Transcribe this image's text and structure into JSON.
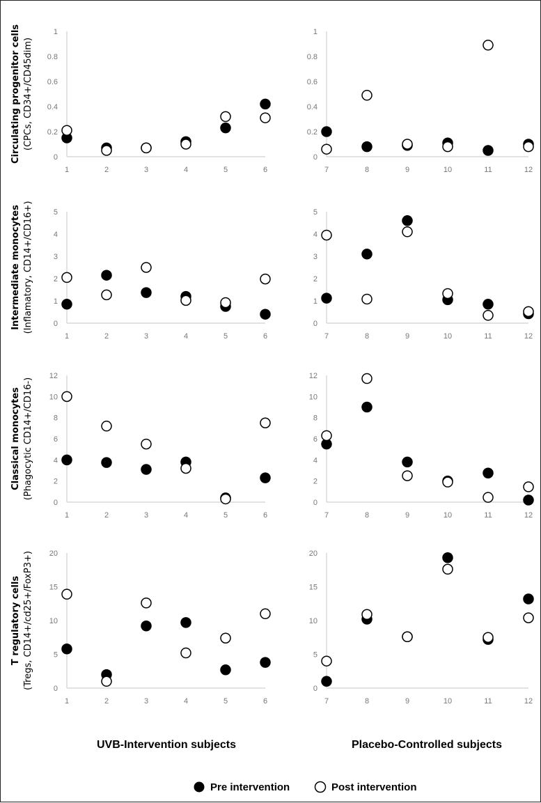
{
  "chart_data": [
    {
      "type": "scatter",
      "row_label": [
        "Circulating progenitor cells",
        "(CPCs,  CD34+/CD45dim)"
      ],
      "x": [
        1,
        2,
        3,
        4,
        5,
        6
      ],
      "ylim": [
        0,
        1
      ],
      "yticks": [
        0,
        0.2,
        0.4,
        0.6,
        0.8,
        1
      ],
      "series": [
        {
          "name": "Pre intervention",
          "values": [
            0.15,
            0.07,
            0.07,
            0.12,
            0.23,
            0.42
          ]
        },
        {
          "name": "Post intervention",
          "values": [
            0.21,
            0.05,
            0.07,
            0.1,
            0.32,
            0.31
          ]
        }
      ]
    },
    {
      "type": "scatter",
      "x": [
        7,
        8,
        9,
        10,
        11,
        12
      ],
      "ylim": [
        0,
        1
      ],
      "yticks": [
        0,
        0.2,
        0.4,
        0.6,
        0.8,
        1
      ],
      "series": [
        {
          "name": "Pre intervention",
          "values": [
            0.2,
            0.08,
            0.09,
            0.11,
            0.05,
            0.1
          ]
        },
        {
          "name": "Post intervention",
          "values": [
            0.06,
            0.49,
            0.1,
            0.08,
            0.89,
            0.08
          ]
        }
      ]
    },
    {
      "type": "scatter",
      "row_label": [
        "Intermediate monocytes",
        "(Inflamatory, CD14+/CD16+)"
      ],
      "x": [
        1,
        2,
        3,
        4,
        5,
        6
      ],
      "ylim": [
        0,
        5
      ],
      "yticks": [
        0,
        1,
        2,
        3,
        4,
        5
      ],
      "series": [
        {
          "name": "Pre intervention",
          "values": [
            0.85,
            2.15,
            1.37,
            1.2,
            0.75,
            0.4
          ]
        },
        {
          "name": "Post intervention",
          "values": [
            2.05,
            1.27,
            2.5,
            1.02,
            0.92,
            1.98
          ]
        }
      ]
    },
    {
      "type": "scatter",
      "x": [
        7,
        8,
        9,
        10,
        11,
        12
      ],
      "ylim": [
        0,
        5
      ],
      "yticks": [
        0,
        1,
        2,
        3,
        4,
        5
      ],
      "series": [
        {
          "name": "Pre intervention",
          "values": [
            1.12,
            3.1,
            4.6,
            1.05,
            0.85,
            0.42
          ]
        },
        {
          "name": "Post intervention",
          "values": [
            3.95,
            1.08,
            4.1,
            1.33,
            0.35,
            0.52
          ]
        }
      ]
    },
    {
      "type": "scatter",
      "row_label": [
        "Classical monocytes",
        "(Phagocytic CD14+/CD16-)"
      ],
      "x": [
        1,
        2,
        3,
        4,
        5,
        6
      ],
      "ylim": [
        0,
        12
      ],
      "yticks": [
        0,
        2,
        4,
        6,
        8,
        10,
        12
      ],
      "series": [
        {
          "name": "Pre intervention",
          "values": [
            4.0,
            3.75,
            3.1,
            3.8,
            0.4,
            2.3
          ]
        },
        {
          "name": "Post intervention",
          "values": [
            10.0,
            7.2,
            5.5,
            3.2,
            0.3,
            7.5
          ]
        }
      ]
    },
    {
      "type": "scatter",
      "x": [
        7,
        8,
        9,
        10,
        11,
        12
      ],
      "ylim": [
        0,
        12
      ],
      "yticks": [
        0,
        2,
        4,
        6,
        8,
        10,
        12
      ],
      "series": [
        {
          "name": "Pre intervention",
          "values": [
            5.5,
            9.0,
            3.8,
            2.0,
            2.75,
            0.2
          ]
        },
        {
          "name": "Post intervention",
          "values": [
            6.3,
            11.7,
            2.5,
            1.9,
            0.45,
            1.45
          ]
        }
      ]
    },
    {
      "type": "scatter",
      "row_label": [
        "T regulatory cells",
        "(Tregs, CD14+/cd25+/FoxP3+)"
      ],
      "x": [
        1,
        2,
        3,
        4,
        5,
        6
      ],
      "ylim": [
        0,
        20
      ],
      "yticks": [
        0,
        5,
        10,
        15,
        20
      ],
      "series": [
        {
          "name": "Pre intervention",
          "values": [
            5.8,
            2.0,
            9.2,
            9.7,
            2.7,
            3.8
          ]
        },
        {
          "name": "Post intervention",
          "values": [
            13.9,
            1.0,
            12.6,
            5.2,
            7.4,
            11.0
          ]
        }
      ]
    },
    {
      "type": "scatter",
      "x": [
        7,
        8,
        9,
        10,
        11,
        12
      ],
      "ylim": [
        0,
        20
      ],
      "yticks": [
        0,
        5,
        10,
        15,
        20
      ],
      "series": [
        {
          "name": "Pre intervention",
          "values": [
            1.0,
            10.2,
            7.6,
            19.3,
            7.2,
            13.2
          ]
        },
        {
          "name": "Post intervention",
          "values": [
            4.0,
            10.9,
            7.6,
            17.6,
            7.5,
            10.4
          ]
        }
      ]
    }
  ],
  "groups": {
    "left": "UVB-Intervention subjects",
    "right": "Placebo-Controlled subjects"
  },
  "legend": {
    "pre": "Pre intervention",
    "post": "Post intervention",
    "pre_marker": "filled-circle",
    "post_marker": "open-circle"
  },
  "colors": {
    "marker": "#000000",
    "axis": "#d0d0d0",
    "tick_text": "#777777"
  }
}
